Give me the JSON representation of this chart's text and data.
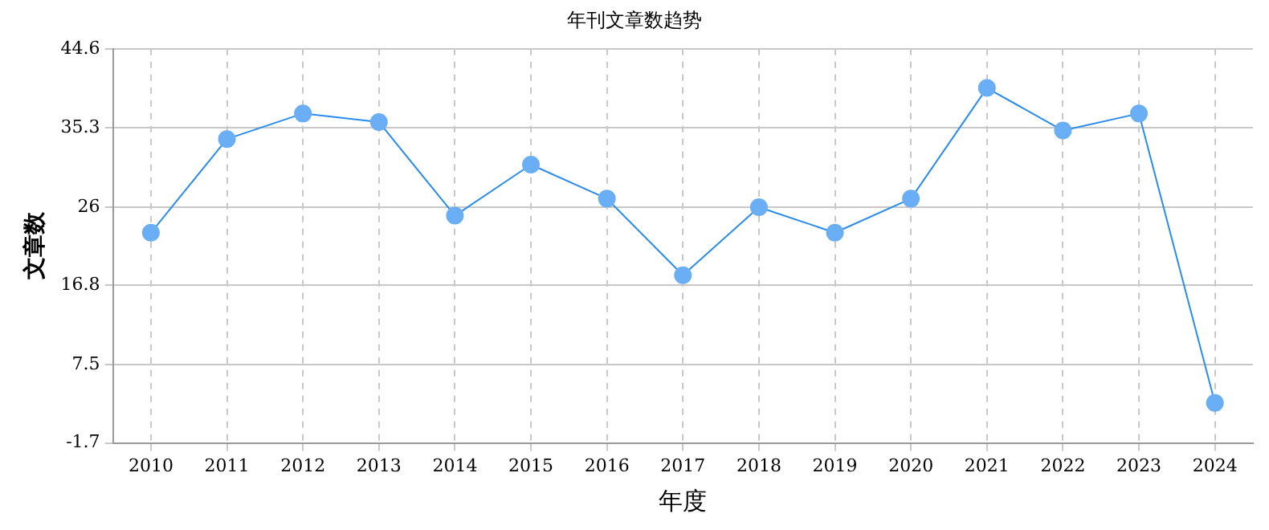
{
  "chart_data": {
    "type": "line",
    "title": "年刊文章数趋势",
    "xlabel": "年度",
    "ylabel": "文章数",
    "categories": [
      "2010",
      "2011",
      "2012",
      "2013",
      "2014",
      "2015",
      "2016",
      "2017",
      "2018",
      "2019",
      "2020",
      "2021",
      "2022",
      "2023",
      "2024"
    ],
    "series": [
      {
        "color": "#2a8cf0",
        "values": [
          23,
          34,
          37,
          36,
          25,
          31,
          27,
          18,
          26,
          23,
          27,
          40,
          35,
          37,
          3
        ]
      }
    ],
    "ylim": [
      -1.7,
      44.6
    ],
    "yticks": [
      -1.7,
      7.5,
      16.8,
      26.0,
      35.3,
      44.6
    ],
    "grid": true,
    "legend": false,
    "marker": "circle",
    "line_style": "solid"
  }
}
